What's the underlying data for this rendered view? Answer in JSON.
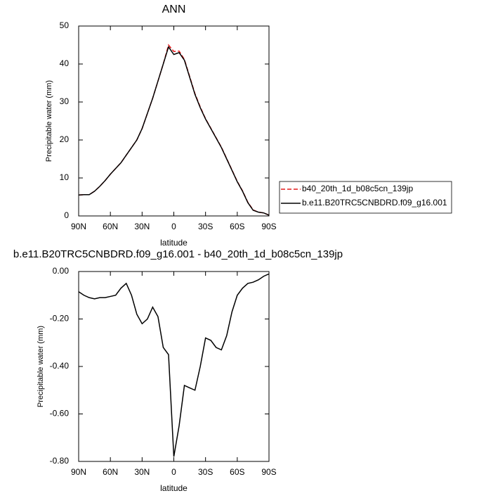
{
  "chart_data": [
    {
      "type": "line",
      "title": "ANN",
      "y_label": "Precipitable water (mm)",
      "x_label": "latitude",
      "x": [
        90,
        85,
        80,
        75,
        70,
        65,
        60,
        55,
        50,
        45,
        40,
        35,
        30,
        25,
        20,
        15,
        10,
        5,
        0,
        -5,
        -10,
        -15,
        -20,
        -25,
        -30,
        -35,
        -40,
        -45,
        -50,
        -55,
        -60,
        -65,
        -70,
        -75,
        -80,
        -85,
        -90
      ],
      "series": [
        {
          "name": "b40_20th_1d_b08c5cn_139jp",
          "color": "#e41a1c",
          "dashed": true,
          "values": [
            5.5,
            5.6,
            5.6,
            6.5,
            7.8,
            9.3,
            11,
            12.5,
            14,
            16,
            18,
            20,
            23,
            27,
            31,
            35.5,
            40,
            45,
            43.3,
            43.4,
            41.2,
            36.7,
            32.2,
            28.7,
            25.6,
            23.1,
            20.6,
            18.1,
            15.1,
            12.1,
            9.1,
            6.6,
            3.6,
            1.6,
            1.0,
            0.8,
            0.2
          ]
        },
        {
          "name": "b.e11.B20TRC5CNBDRD.f09_g16.001",
          "color": "#000000",
          "dashed": false,
          "values": [
            5.5,
            5.6,
            5.6,
            6.5,
            7.8,
            9.3,
            11,
            12.5,
            14,
            16,
            18,
            20,
            23,
            27,
            31,
            35.5,
            40,
            44.5,
            42.5,
            43,
            41,
            36.5,
            32,
            28.5,
            25.5,
            23,
            20.5,
            18,
            15,
            12,
            9,
            6.5,
            3.5,
            1.5,
            1.0,
            0.8,
            0.2
          ]
        }
      ],
      "xlim": [
        90,
        -90
      ],
      "xticks": [
        {
          "value": 90,
          "label": "90N"
        },
        {
          "value": 60,
          "label": "60N"
        },
        {
          "value": 30,
          "label": "30N"
        },
        0,
        {
          "value": -30,
          "label": "30S"
        },
        {
          "value": -60,
          "label": "60S"
        },
        {
          "value": -90,
          "label": "90S"
        }
      ],
      "ylim": [
        0,
        50
      ],
      "yticks": [
        0,
        10,
        20,
        30,
        40,
        50
      ],
      "legend": "right"
    },
    {
      "type": "line",
      "title": "b.e11.B20TRC5CNBDRD.f09_g16.001 - b40_20th_1d_b08c5cn_139jp",
      "y_label": "Precipitable water (mm)",
      "x_label": "latitude",
      "x": [
        90,
        85,
        80,
        75,
        70,
        65,
        60,
        55,
        50,
        45,
        40,
        35,
        30,
        25,
        20,
        15,
        10,
        5,
        0,
        -5,
        -10,
        -15,
        -20,
        -25,
        -30,
        -35,
        -40,
        -45,
        -50,
        -55,
        -60,
        -65,
        -70,
        -75,
        -80,
        -85,
        -90
      ],
      "series": [
        {
          "color": "#000000",
          "dashed": false,
          "values": [
            -0.085,
            -0.1,
            -0.11,
            -0.115,
            -0.11,
            -0.11,
            -0.105,
            -0.1,
            -0.07,
            -0.05,
            -0.1,
            -0.18,
            -0.22,
            -0.2,
            -0.15,
            -0.19,
            -0.32,
            -0.35,
            -0.78,
            -0.65,
            -0.48,
            -0.49,
            -0.5,
            -0.4,
            -0.28,
            -0.29,
            -0.32,
            -0.33,
            -0.27,
            -0.17,
            -0.1,
            -0.07,
            -0.05,
            -0.045,
            -0.035,
            -0.02,
            -0.01
          ]
        }
      ],
      "xlim": [
        90,
        -90
      ],
      "xticks": [
        {
          "value": 90,
          "label": "90N"
        },
        {
          "value": 60,
          "label": "60N"
        },
        {
          "value": 30,
          "label": "30N"
        },
        0,
        {
          "value": -30,
          "label": "30S"
        },
        {
          "value": -60,
          "label": "60S"
        },
        {
          "value": -90,
          "label": "90S"
        }
      ],
      "ylim": [
        -0.8,
        0
      ],
      "yticks": [
        {
          "value": -0.8,
          "label": "-0.80"
        },
        {
          "value": -0.6,
          "label": "-0.60"
        },
        {
          "value": -0.4,
          "label": "-0.40"
        },
        {
          "value": -0.2,
          "label": "-0.20"
        },
        {
          "value": 0,
          "label": "0.00"
        }
      ]
    }
  ]
}
